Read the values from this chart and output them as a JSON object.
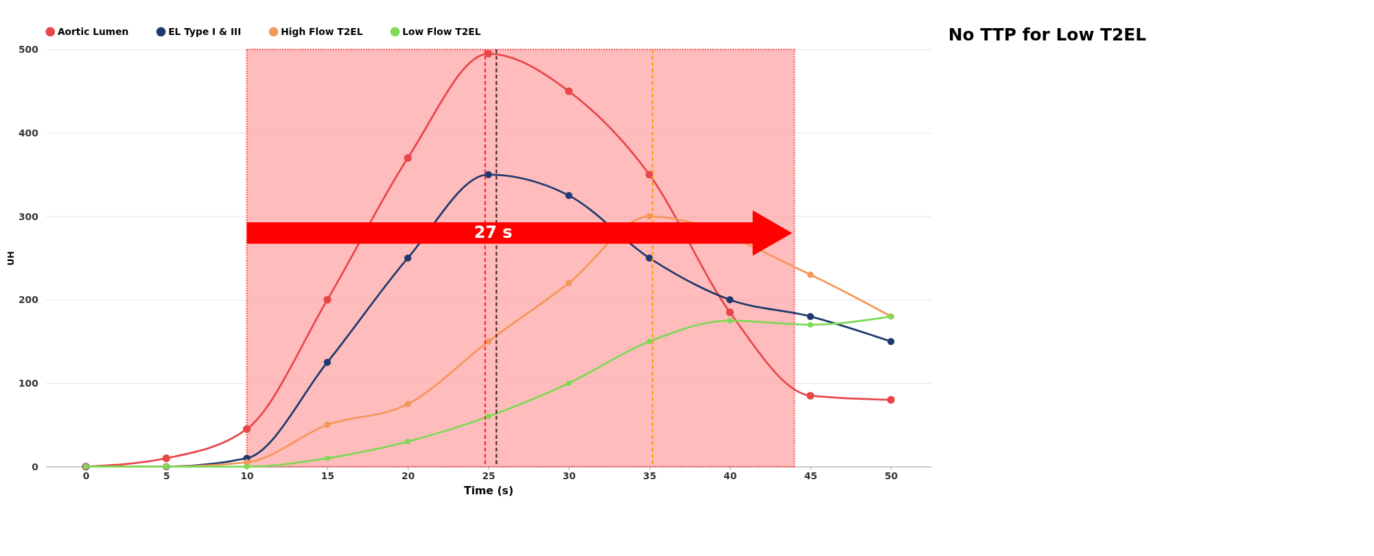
{
  "chart_data": {
    "type": "line",
    "xlabel": "Time   (s)",
    "ylabel": "UH",
    "x": [
      0,
      5,
      10,
      15,
      20,
      25,
      30,
      35,
      40,
      45,
      50
    ],
    "series": [
      {
        "name": "Aortic Lumen",
        "color": "#e8474a",
        "values": [
          0,
          10,
          45,
          200,
          370,
          495,
          450,
          350,
          185,
          85,
          80
        ]
      },
      {
        "name": "EL Type I & III",
        "color": "#1f3a6e",
        "values": [
          0,
          0,
          10,
          125,
          250,
          350,
          325,
          250,
          200,
          180,
          150
        ]
      },
      {
        "name": "High Flow T2EL",
        "color": "#f4975a",
        "values": [
          0,
          0,
          5,
          50,
          75,
          150,
          220,
          300,
          null,
          230,
          180
        ]
      },
      {
        "name": "Low Flow T2EL",
        "color": "#7ed957",
        "values": [
          0,
          0,
          0,
          10,
          30,
          60,
          100,
          150,
          175,
          170,
          180
        ]
      }
    ],
    "xlim": [
      -2.5,
      52.5
    ],
    "xticks": [
      0,
      5,
      10,
      15,
      20,
      25,
      30,
      35,
      40,
      45,
      50
    ],
    "ylim": [
      0,
      500
    ],
    "yticks": [
      0,
      100,
      200,
      300,
      400,
      500
    ],
    "grid": "y",
    "legend": "top",
    "marker": "circle",
    "line_style": "solid",
    "bands": [
      {
        "axis": "x",
        "from": 10,
        "to": 44,
        "label": null,
        "color": "#ff9999"
      }
    ],
    "ref_lines": [
      {
        "axis": "x",
        "value": 24.8,
        "label": null,
        "color": "#ff2a2a",
        "line_style": "dashed"
      },
      {
        "axis": "x",
        "value": 25.5,
        "label": null,
        "color": "#4a3030",
        "line_style": "dashed"
      },
      {
        "axis": "x",
        "value": 35.2,
        "label": null,
        "color": "#ff9a1a",
        "line_style": "dashed"
      }
    ],
    "annotations": [
      "27 s",
      "No TTP for Low T2EL"
    ]
  }
}
